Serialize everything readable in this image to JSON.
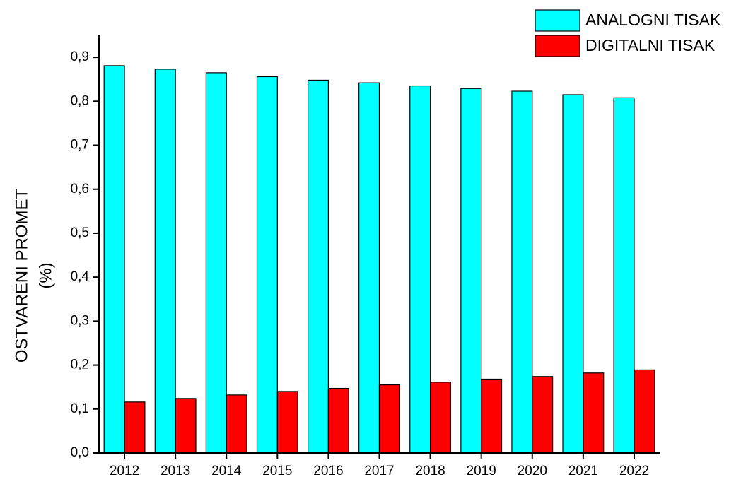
{
  "chart_data": {
    "type": "bar",
    "ylabel": [
      "OSTVARENI PROMET",
      "(%)"
    ],
    "categories": [
      "2012",
      "2013",
      "2014",
      "2015",
      "2016",
      "2017",
      "2018",
      "2019",
      "2020",
      "2021",
      "2022"
    ],
    "series": [
      {
        "name": "ANALOGNI TISAK",
        "color": "#00ffff",
        "values": [
          0.881,
          0.873,
          0.865,
          0.856,
          0.848,
          0.842,
          0.835,
          0.829,
          0.823,
          0.815,
          0.808
        ]
      },
      {
        "name": "DIGITALNI TISAK",
        "color": "#ff0000",
        "values": [
          0.116,
          0.124,
          0.132,
          0.14,
          0.147,
          0.155,
          0.161,
          0.168,
          0.174,
          0.182,
          0.189
        ]
      }
    ],
    "ylim": [
      0,
      0.95
    ],
    "yticks": [
      {
        "value": 0,
        "label": "0,0"
      },
      {
        "value": 0.1,
        "label": "0,1"
      },
      {
        "value": 0.2,
        "label": "0,2"
      },
      {
        "value": 0.3,
        "label": "0,3"
      },
      {
        "value": 0.4,
        "label": "0,4"
      },
      {
        "value": 0.5,
        "label": "0,5"
      },
      {
        "value": 0.6,
        "label": "0,6"
      },
      {
        "value": 0.7,
        "label": "0,7"
      },
      {
        "value": 0.8,
        "label": "0,8"
      },
      {
        "value": 0.9,
        "label": "0,9"
      }
    ],
    "grid": false,
    "legend": "top-right"
  }
}
